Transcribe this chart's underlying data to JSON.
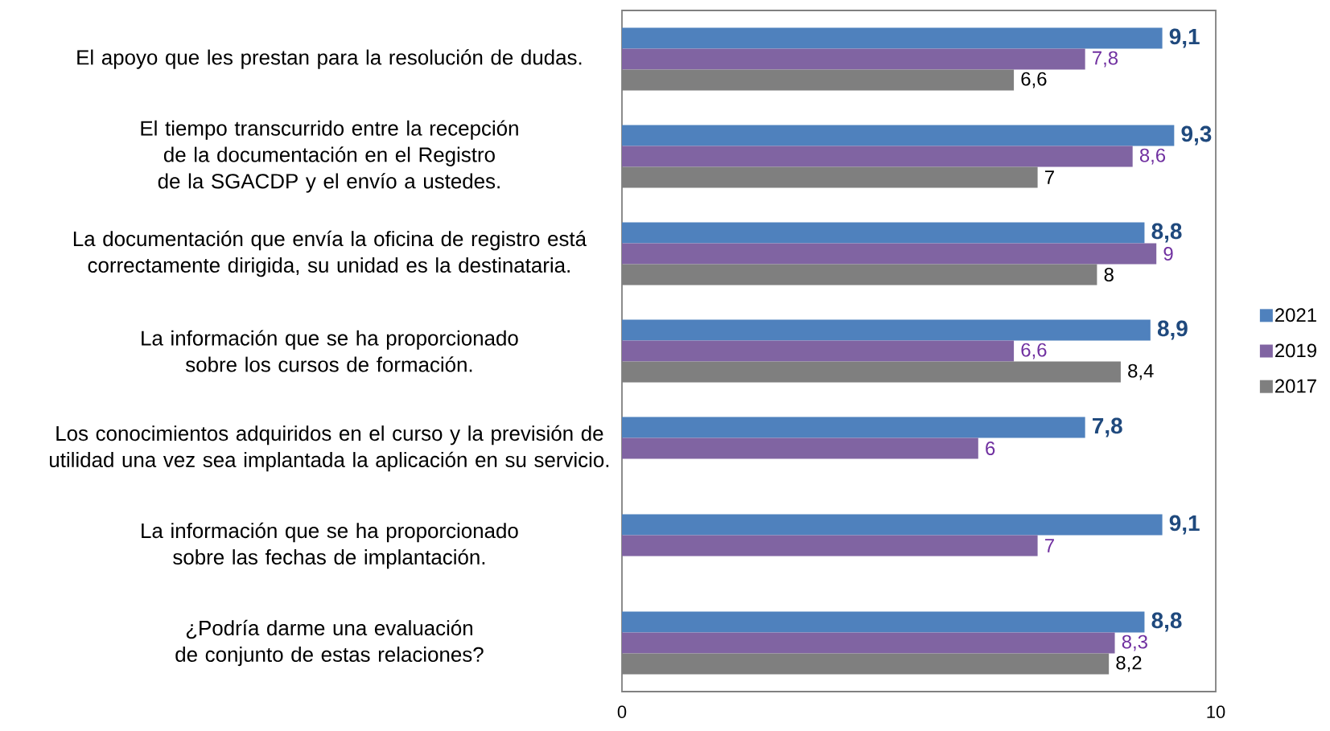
{
  "chart_data": {
    "type": "bar",
    "orientation": "horizontal",
    "categories": [
      "El apoyo que les prestan para la resolución de dudas.",
      "El tiempo transcurrido entre la recepción de la documentación en el Registro de la SGACDP y el envío a ustedes.",
      "La documentación que envía la oficina de registro está correctamente dirigida, su unidad es la destinataria.",
      "La información que se ha proporcionado sobre los cursos de formación.",
      "Los conocimientos adquiridos en el curso y la previsión de utilidad una vez sea implantada la aplicación en su servicio.",
      "La información que se ha proporcionado sobre las fechas de implantación.",
      "¿Podría darme una evaluación de conjunto de estas relaciones?"
    ],
    "series": [
      {
        "name": "2021",
        "color": "#4f81bd",
        "values": [
          9.1,
          9.3,
          8.8,
          8.9,
          7.8,
          9.1,
          8.8
        ],
        "value_labels": [
          "9,1",
          "9,3",
          "8,8",
          "8,9",
          "7,8",
          "9,1",
          "8,8"
        ]
      },
      {
        "name": "2019",
        "color": "#8064a2",
        "values": [
          7.8,
          8.6,
          9,
          6.6,
          6,
          7,
          8.3
        ],
        "value_labels": [
          "7,8",
          "8,6",
          "9",
          "6,6",
          "6",
          "7",
          "8,3"
        ]
      },
      {
        "name": "2017",
        "color": "#7f7f7f",
        "values": [
          6.6,
          7,
          8,
          8.4,
          null,
          null,
          8.2
        ],
        "value_labels": [
          "6,6",
          "7",
          "8",
          "8,4",
          null,
          null,
          "8,2"
        ]
      }
    ],
    "xlim": [
      0,
      10
    ],
    "xticks": [
      0,
      10
    ],
    "legend": "right"
  }
}
